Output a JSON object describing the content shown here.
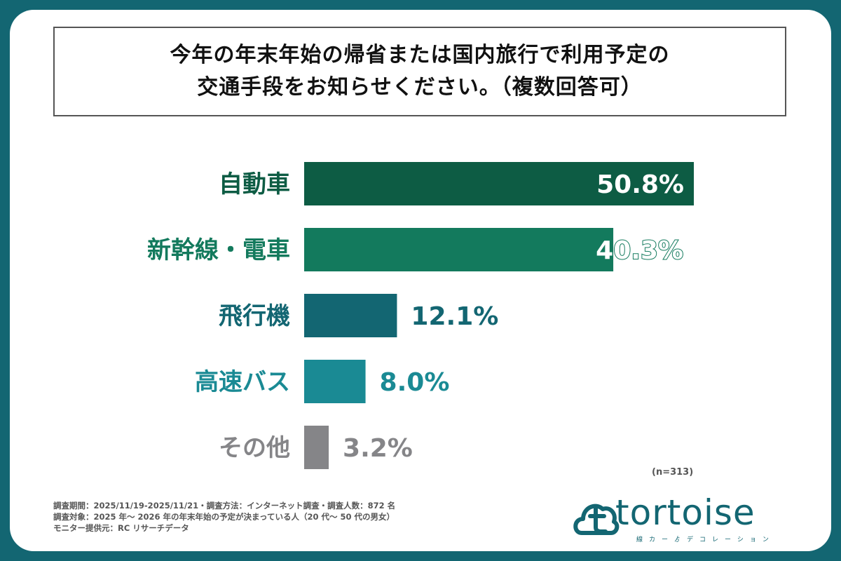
{
  "title": {
    "line1": "今年の年末年始の帰省または国内旅行で利用予定の",
    "line2": "交通手段をお知らせください。（複数回答可）"
  },
  "chart_data": {
    "type": "bar",
    "orientation": "horizontal",
    "unit": "%",
    "categories": [
      "自動車",
      "新幹線・電車",
      "飛行機",
      "高速バス",
      "その他"
    ],
    "values": [
      50.8,
      40.3,
      12.1,
      8.0,
      3.2
    ],
    "value_labels": [
      "50.8%",
      "40.3%",
      "12.1%",
      "8.0%",
      "3.2%"
    ],
    "colors": [
      "#0d5c44",
      "#137a5d",
      "#136672",
      "#1a8a94",
      "#858588"
    ],
    "xlim": [
      0,
      50.8
    ]
  },
  "sample_size": "(n=313)",
  "notes": [
    "調査期間：2025/11/19-2025/11/21・調査方法：インターネット調査・調査人数：872 名",
    "調査対象：2025 年〜 2026 年の年末年始の予定が決まっている人（20 代〜 50 代の男女）",
    "モニター提供元：RC リサーチデータ"
  ],
  "logo": {
    "name": "tortoise",
    "tagline": "線カーゟデコレーション"
  }
}
